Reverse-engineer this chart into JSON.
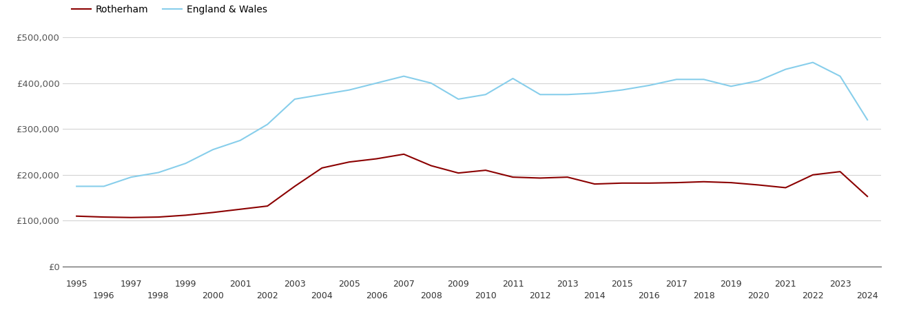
{
  "years": [
    1995,
    1996,
    1997,
    1998,
    1999,
    2000,
    2001,
    2002,
    2003,
    2004,
    2005,
    2006,
    2007,
    2008,
    2009,
    2010,
    2011,
    2012,
    2013,
    2014,
    2015,
    2016,
    2017,
    2018,
    2019,
    2020,
    2021,
    2022,
    2023,
    2024
  ],
  "rotherham": [
    110000,
    108000,
    107000,
    108000,
    112000,
    118000,
    125000,
    132000,
    175000,
    215000,
    228000,
    235000,
    245000,
    220000,
    204000,
    210000,
    195000,
    193000,
    195000,
    180000,
    182000,
    182000,
    183000,
    185000,
    183000,
    178000,
    172000,
    200000,
    207000,
    153000
  ],
  "england_wales": [
    175000,
    175000,
    195000,
    205000,
    225000,
    255000,
    275000,
    310000,
    365000,
    375000,
    385000,
    400000,
    415000,
    400000,
    365000,
    375000,
    410000,
    375000,
    375000,
    378000,
    385000,
    395000,
    408000,
    408000,
    393000,
    405000,
    430000,
    445000,
    415000,
    320000
  ],
  "rotherham_color": "#8b0000",
  "england_wales_color": "#87CEEB",
  "background_color": "#ffffff",
  "grid_color": "#d3d3d3",
  "ylim": [
    0,
    500000
  ],
  "yticks": [
    0,
    100000,
    200000,
    300000,
    400000,
    500000
  ],
  "ytick_labels": [
    "£0",
    "£100,000",
    "£200,000",
    "£300,000",
    "£400,000",
    "£500,000"
  ],
  "legend_rotherham": "Rotherham",
  "legend_ew": "England & Wales",
  "line_width": 1.5
}
